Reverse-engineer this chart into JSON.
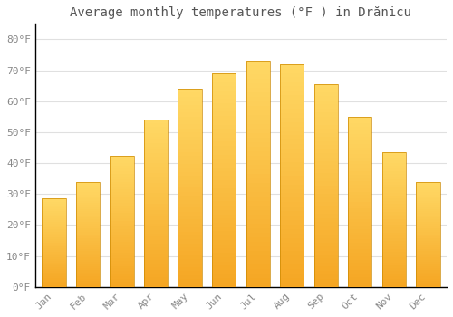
{
  "title": "Average monthly temperatures (°F ) in Drănicu",
  "months": [
    "Jan",
    "Feb",
    "Mar",
    "Apr",
    "May",
    "Jun",
    "Jul",
    "Aug",
    "Sep",
    "Oct",
    "Nov",
    "Dec"
  ],
  "values": [
    28.5,
    34.0,
    42.5,
    54.0,
    64.0,
    69.0,
    73.0,
    72.0,
    65.5,
    55.0,
    43.5,
    34.0
  ],
  "bar_color_bottom": "#F5A623",
  "bar_color_top": "#FFD966",
  "background_color": "#FFFFFF",
  "grid_color": "#E0E0E0",
  "yticks": [
    0,
    10,
    20,
    30,
    40,
    50,
    60,
    70,
    80
  ],
  "ylim": [
    0,
    85
  ],
  "title_fontsize": 10,
  "tick_fontsize": 8,
  "title_color": "#555555",
  "tick_color": "#888888",
  "spine_color": "#000000",
  "font_family": "monospace"
}
